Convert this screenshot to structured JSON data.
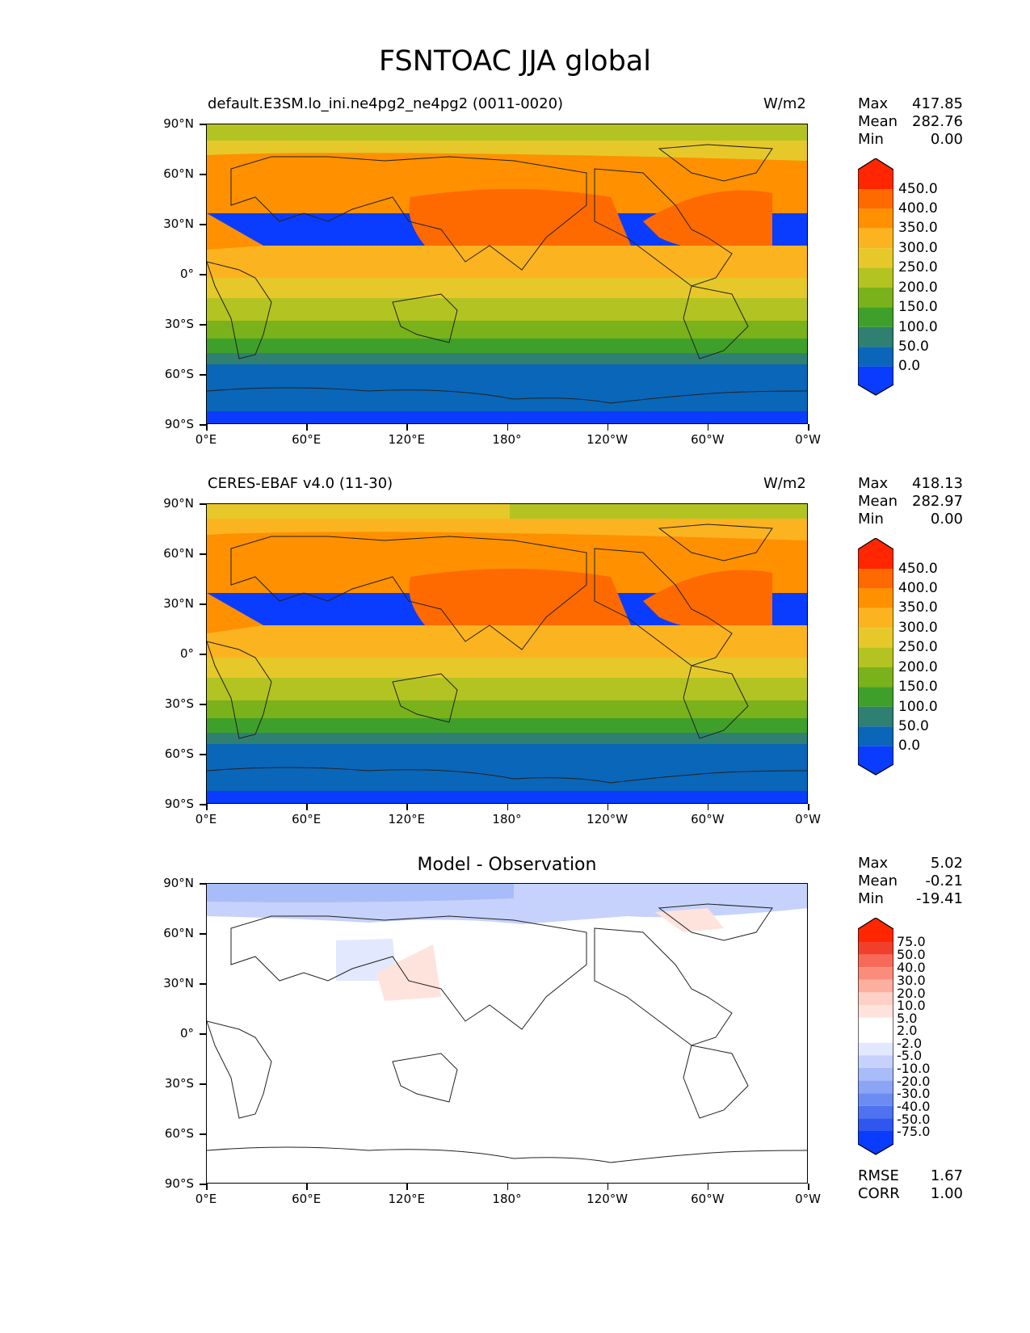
{
  "title": "FSNTOAC JJA global",
  "lat_ticks": [
    "90°N",
    "60°N",
    "30°N",
    "0°",
    "30°S",
    "60°S",
    "90°S"
  ],
  "lon_ticks": [
    "0°E",
    "60°E",
    "120°E",
    "180°",
    "120°W",
    "60°W",
    "0°W"
  ],
  "panels": [
    {
      "left_title": "default.E3SM.lo_ini.ne4pg2_ne4pg2 (0011-0020)",
      "center_title": "",
      "units": "W/m2",
      "stats": {
        "max_label": "Max",
        "max": "417.85",
        "mean_label": "Mean",
        "mean": "282.76",
        "min_label": "Min",
        "min": "0.00"
      },
      "colorbar": [
        "450.0",
        "400.0",
        "350.0",
        "300.0",
        "250.0",
        "200.0",
        "150.0",
        "100.0",
        "50.0",
        "0.0"
      ]
    },
    {
      "left_title": "CERES-EBAF v4.0 (11-30)",
      "center_title": "",
      "units": "W/m2",
      "stats": {
        "max_label": "Max",
        "max": "418.13",
        "mean_label": "Mean",
        "mean": "282.97",
        "min_label": "Min",
        "min": "0.00"
      },
      "colorbar": [
        "450.0",
        "400.0",
        "350.0",
        "300.0",
        "250.0",
        "200.0",
        "150.0",
        "100.0",
        "50.0",
        "0.0"
      ]
    },
    {
      "left_title": "",
      "center_title": "Model - Observation",
      "units": "",
      "stats": {
        "max_label": "Max",
        "max": "5.02",
        "mean_label": "Mean",
        "mean": "-0.21",
        "min_label": "Min",
        "min": "-19.41"
      },
      "colorbar": [
        "75.0",
        "50.0",
        "40.0",
        "30.0",
        "20.0",
        "10.0",
        "5.0",
        "2.0",
        "-2.0",
        "-5.0",
        "-10.0",
        "-20.0",
        "-30.0",
        "-40.0",
        "-50.0",
        "-75.0"
      ],
      "extra": {
        "rmse_label": "RMSE",
        "rmse": "1.67",
        "corr_label": "CORR",
        "corr": "1.00"
      }
    }
  ],
  "colors": {
    "abs_scale": [
      "#ff2600",
      "#ff6a00",
      "#ff9000",
      "#fcb320",
      "#e6c82a",
      "#b3c322",
      "#79b21a",
      "#3ea02a",
      "#2f8070",
      "#0a66b8",
      "#0a3cff"
    ],
    "diff_scale": [
      "#ff2600",
      "#f0402c",
      "#f76a5a",
      "#fa8c7c",
      "#fcae9f",
      "#fdd1c6",
      "#fee3dc",
      "#ffffff",
      "#ffffff",
      "#e2e8fd",
      "#c6d2fb",
      "#a8bcf9",
      "#8aa4f6",
      "#6c8cf3",
      "#4e72f0",
      "#2f56ef",
      "#0a3cff"
    ]
  }
}
